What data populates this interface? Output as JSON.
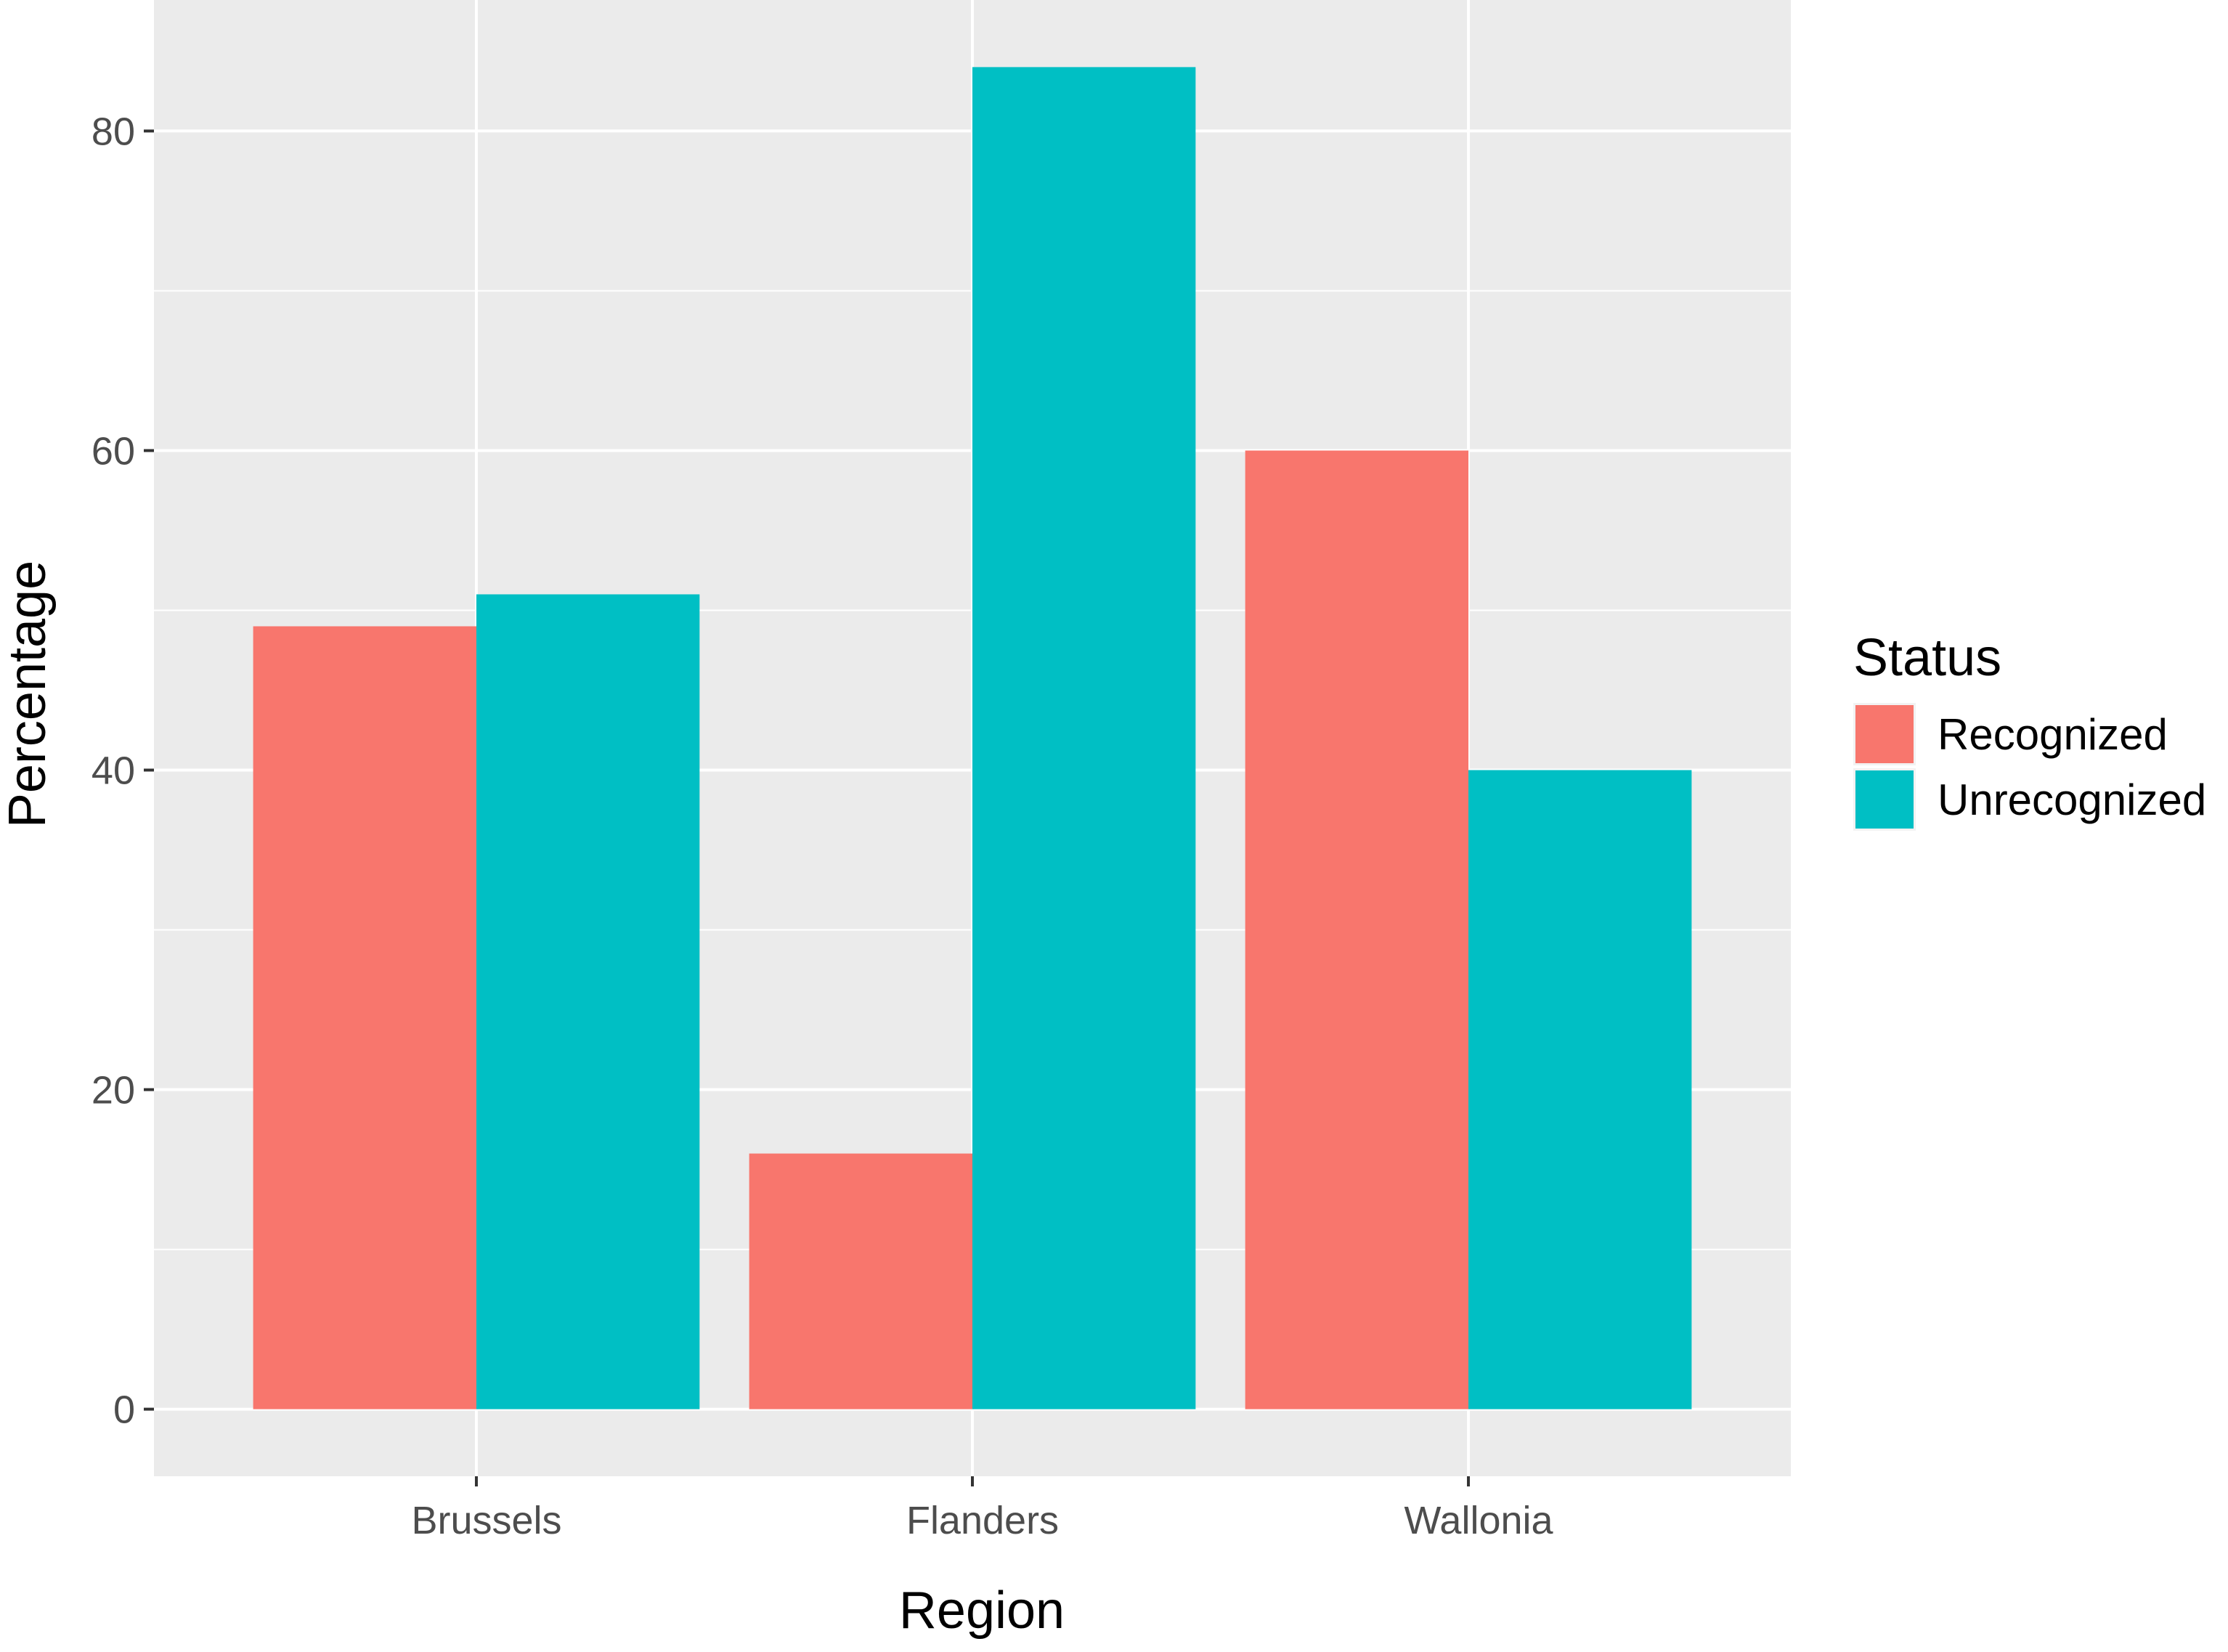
{
  "chart_data": {
    "type": "bar",
    "categories": [
      "Brussels",
      "Flanders",
      "Wallonia"
    ],
    "series": [
      {
        "name": "Recognized",
        "values": [
          49,
          16,
          60
        ],
        "color": "#F8766D"
      },
      {
        "name": "Unrecognized",
        "values": [
          51,
          84,
          40
        ],
        "color": "#00BFC4"
      }
    ],
    "xlabel": "Region",
    "ylabel": "Percentage",
    "ylim": [
      -4.2,
      88.2
    ],
    "yticks": [
      0,
      20,
      40,
      60,
      80
    ],
    "legend": {
      "title": "Status",
      "placement": "right"
    },
    "grid": true,
    "panel_background": "#EBEBEB",
    "grid_color": "#FFFFFF"
  }
}
